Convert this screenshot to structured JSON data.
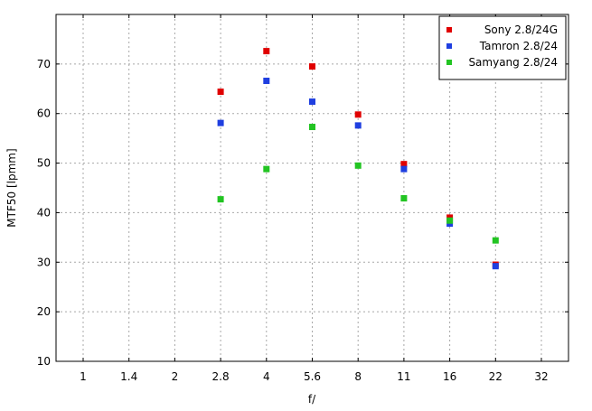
{
  "chart_data": {
    "type": "scatter",
    "xlabel": "f/",
    "ylabel": "MTF50 [lpmm]",
    "categories": [
      "1",
      "1.4",
      "2",
      "2.8",
      "4",
      "5.6",
      "8",
      "11",
      "16",
      "22",
      "32"
    ],
    "ylim": [
      10,
      80
    ],
    "yticks": [
      10,
      20,
      30,
      40,
      50,
      60,
      70
    ],
    "grid": true,
    "legend_position": "top-right",
    "series": [
      {
        "name": "Sony 2.8/24G",
        "color": "#e00000",
        "points": [
          {
            "x": "2.8",
            "y": 64.4
          },
          {
            "x": "4",
            "y": 72.6
          },
          {
            "x": "5.6",
            "y": 69.5
          },
          {
            "x": "8",
            "y": 59.8
          },
          {
            "x": "11",
            "y": 49.8
          },
          {
            "x": "16",
            "y": 39.0
          },
          {
            "x": "22",
            "y": 29.5
          }
        ]
      },
      {
        "name": "Tamron 2.8/24",
        "color": "#1f3fe0",
        "points": [
          {
            "x": "2.8",
            "y": 58.1
          },
          {
            "x": "4",
            "y": 66.6
          },
          {
            "x": "5.6",
            "y": 62.4
          },
          {
            "x": "8",
            "y": 57.6
          },
          {
            "x": "11",
            "y": 48.8
          },
          {
            "x": "16",
            "y": 37.8
          },
          {
            "x": "22",
            "y": 29.2
          }
        ]
      },
      {
        "name": "Samyang 2.8/24",
        "color": "#22c422",
        "points": [
          {
            "x": "2.8",
            "y": 42.7
          },
          {
            "x": "4",
            "y": 48.8
          },
          {
            "x": "5.6",
            "y": 57.3
          },
          {
            "x": "8",
            "y": 49.5
          },
          {
            "x": "11",
            "y": 42.9
          },
          {
            "x": "16",
            "y": 38.4
          },
          {
            "x": "22",
            "y": 34.4
          }
        ]
      }
    ]
  }
}
